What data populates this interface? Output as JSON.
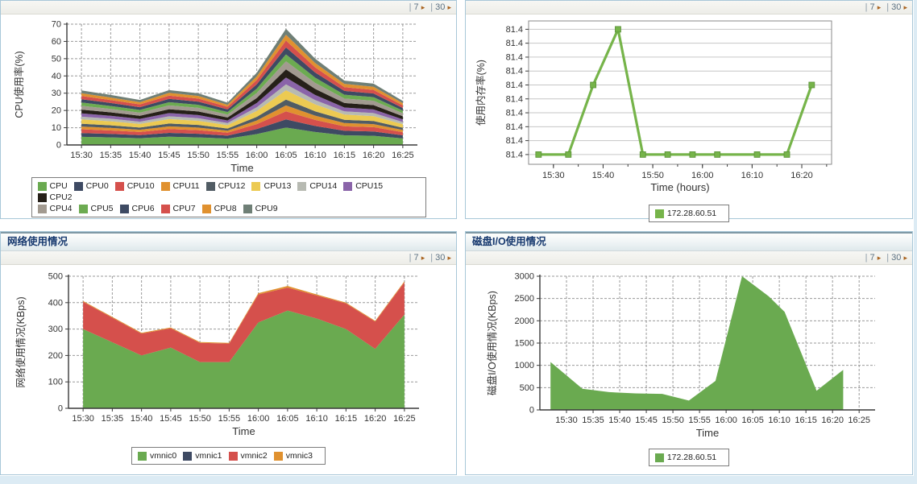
{
  "toolbar": {
    "sep": "|",
    "link7": "7",
    "link30": "30",
    "arrow": "▸"
  },
  "panels": {
    "cpu": {},
    "memory": {},
    "network": {
      "title": "网络使用情况"
    },
    "disk": {
      "title": "磁盘I/O使用情况"
    }
  },
  "colors": {
    "panel_border": "#a8c7d8",
    "page_strip": "#dcebf4",
    "title_text": "#16386e",
    "grid_dashed": "#999999",
    "grid_solid": "#c6c6c6",
    "axis": "#3a3a3a"
  },
  "chart_data": [
    {
      "id": "cpu",
      "type": "area-stacked",
      "axis": "axes",
      "grid": "dashed",
      "ylabel": "CPU使用率(%)",
      "xlabel": "Time",
      "ylim": [
        0,
        70
      ],
      "yticks": [
        0,
        10,
        20,
        30,
        40,
        50,
        60,
        70
      ],
      "ytick_labels": [
        "0",
        "10",
        "20",
        "30",
        "40",
        "50",
        "60",
        "70"
      ],
      "xdomain": [
        27.5,
        87.5
      ],
      "xtick_pos": [
        30,
        35,
        40,
        45,
        50,
        55,
        60,
        65,
        70,
        75,
        80,
        85
      ],
      "x_ticks": [
        "15:30",
        "15:35",
        "15:40",
        "15:45",
        "15:50",
        "15:55",
        "16:00",
        "16:05",
        "16:10",
        "16:15",
        "16:20",
        "16:25"
      ],
      "x": [
        30,
        35,
        40,
        45,
        50,
        55,
        60,
        65,
        70,
        75,
        80,
        85
      ],
      "legend_break": 9,
      "series": [
        {
          "name": "CPU",
          "color": "#6aaa50",
          "values": [
            4.7,
            4.4,
            3.9,
            4.8,
            4.4,
            3.7,
            6.3,
            10.1,
            7.5,
            5.6,
            5.3,
            3.8
          ]
        },
        {
          "name": "CPU0",
          "color": "#3e4a63",
          "values": [
            2.2,
            2.0,
            1.8,
            2.2,
            2.1,
            1.7,
            2.9,
            4.7,
            3.5,
            2.6,
            2.5,
            1.8
          ]
        },
        {
          "name": "CPU10",
          "color": "#d5504c",
          "values": [
            2.2,
            2.0,
            1.8,
            2.2,
            2.1,
            1.7,
            2.9,
            4.7,
            3.5,
            2.6,
            2.5,
            1.8
          ]
        },
        {
          "name": "CPU11",
          "color": "#e0912f",
          "values": [
            1.6,
            1.5,
            1.3,
            1.6,
            1.5,
            1.2,
            2.1,
            3.4,
            2.5,
            1.9,
            1.8,
            1.3
          ]
        },
        {
          "name": "CPU12",
          "color": "#515c64",
          "values": [
            1.6,
            1.5,
            1.3,
            1.6,
            1.5,
            1.2,
            2.1,
            3.4,
            2.5,
            1.9,
            1.8,
            1.3
          ]
        },
        {
          "name": "CPU13",
          "color": "#ecca52",
          "values": [
            2.5,
            2.3,
            2.1,
            2.6,
            2.4,
            2.0,
            3.4,
            5.4,
            4.0,
            3.0,
            2.8,
            2.0
          ]
        },
        {
          "name": "CPU14",
          "color": "#b7bab2",
          "values": [
            1.6,
            1.5,
            1.3,
            1.6,
            1.5,
            1.2,
            2.1,
            3.4,
            2.5,
            1.9,
            1.8,
            1.3
          ]
        },
        {
          "name": "CPU15",
          "color": "#8a64a9",
          "values": [
            1.9,
            1.7,
            1.6,
            1.9,
            1.8,
            1.5,
            2.5,
            4.0,
            3.0,
            2.2,
            2.1,
            1.5
          ]
        },
        {
          "name": "CPU2",
          "color": "#262019",
          "values": [
            2.2,
            2.0,
            1.8,
            2.2,
            2.1,
            1.7,
            2.9,
            4.7,
            3.5,
            2.6,
            2.5,
            1.8
          ]
        },
        {
          "name": "CPU4",
          "color": "#a29a90",
          "values": [
            2.2,
            2.0,
            1.8,
            2.2,
            2.1,
            1.7,
            2.9,
            4.7,
            3.5,
            2.6,
            2.5,
            1.8
          ]
        },
        {
          "name": "CPU5",
          "color": "#6cab51",
          "values": [
            1.9,
            1.7,
            1.6,
            1.9,
            1.8,
            1.5,
            2.5,
            4.0,
            3.0,
            2.2,
            2.1,
            1.5
          ]
        },
        {
          "name": "CPU6",
          "color": "#3e4a63",
          "values": [
            1.9,
            1.7,
            1.6,
            1.9,
            1.8,
            1.5,
            2.5,
            4.0,
            3.0,
            2.2,
            2.1,
            1.5
          ]
        },
        {
          "name": "CPU7",
          "color": "#d5504c",
          "values": [
            1.9,
            1.7,
            1.6,
            1.9,
            1.8,
            1.5,
            2.5,
            4.0,
            3.0,
            2.2,
            2.1,
            1.5
          ]
        },
        {
          "name": "CPU8",
          "color": "#e0912f",
          "values": [
            1.6,
            1.5,
            1.3,
            1.6,
            1.5,
            1.2,
            2.1,
            3.4,
            2.5,
            1.9,
            1.8,
            1.3
          ]
        },
        {
          "name": "CPU9",
          "color": "#6f7f76",
          "values": [
            1.6,
            1.5,
            1.3,
            1.6,
            1.5,
            1.2,
            2.1,
            3.4,
            2.5,
            1.9,
            1.8,
            1.3
          ]
        }
      ]
    },
    {
      "id": "memory",
      "type": "line",
      "axis": "box",
      "grid": "solid",
      "ylabel": "使用内存率(%)",
      "xlabel": "Time (hours)",
      "ylim": [
        81.3965,
        81.448
      ],
      "yticks": [
        81.4,
        81.405,
        81.41,
        81.415,
        81.42,
        81.425,
        81.43,
        81.435,
        81.44,
        81.445
      ],
      "ytick_labels": [
        "81.4",
        "81.4",
        "81.4",
        "81.4",
        "81.4",
        "81.4",
        "81.4",
        "81.4",
        "81.4",
        "81.4"
      ],
      "note": "every y-axis tick label displays 81.4",
      "xdomain": [
        25,
        86
      ],
      "xtick_pos": [
        30,
        40,
        50,
        60,
        70,
        80
      ],
      "x_ticks": [
        "15:30",
        "15:40",
        "15:50",
        "16:00",
        "16:10",
        "16:20"
      ],
      "xminor_pos": [
        30,
        35,
        40,
        45,
        50,
        55,
        60,
        65,
        70,
        75,
        80,
        85
      ],
      "x": [
        27,
        33,
        38,
        43,
        48,
        53,
        58,
        63,
        71,
        77,
        82
      ],
      "series": [
        {
          "name": "172.28.60.51",
          "color": "#76b44a",
          "values": [
            81.4,
            81.4,
            81.425,
            81.445,
            81.4,
            81.4,
            81.4,
            81.4,
            81.4,
            81.4,
            81.425
          ]
        }
      ]
    },
    {
      "id": "network",
      "type": "area-stacked",
      "axis": "axes",
      "grid": "dashed",
      "ylabel": "网络使用情况(KBps)",
      "xlabel": "Time",
      "ylim": [
        0,
        500
      ],
      "yticks": [
        0,
        100,
        200,
        300,
        400,
        500
      ],
      "ytick_labels": [
        "0",
        "100",
        "200",
        "300",
        "400",
        "500"
      ],
      "xdomain": [
        27.5,
        87.5
      ],
      "xtick_pos": [
        30,
        35,
        40,
        45,
        50,
        55,
        60,
        65,
        70,
        75,
        80,
        85
      ],
      "x_ticks": [
        "15:30",
        "15:35",
        "15:40",
        "15:45",
        "15:50",
        "15:55",
        "16:00",
        "16:05",
        "16:10",
        "16:15",
        "16:20",
        "16:25"
      ],
      "x": [
        30,
        35,
        40,
        45,
        50,
        55,
        60,
        65,
        70,
        75,
        80,
        85
      ],
      "series": [
        {
          "name": "vmnic0",
          "color": "#6aaa50",
          "values": [
            300,
            250,
            200,
            230,
            175,
            175,
            325,
            370,
            340,
            300,
            225,
            355
          ]
        },
        {
          "name": "vmnic1",
          "color": "#3e4a63",
          "values": [
            0,
            0,
            0,
            0,
            0,
            0,
            0,
            0,
            0,
            0,
            0,
            0
          ]
        },
        {
          "name": "vmnic2",
          "color": "#d5504c",
          "values": [
            103,
            93,
            83,
            73,
            73,
            70,
            106,
            87,
            87,
            97,
            103,
            122
          ]
        },
        {
          "name": "vmnic3",
          "color": "#e0912f",
          "values": [
            3,
            3,
            3,
            3,
            3,
            3,
            5,
            6,
            4,
            3,
            3,
            4
          ]
        }
      ]
    },
    {
      "id": "disk",
      "type": "area",
      "axis": "axes",
      "grid": "dashed",
      "ylabel": "磁盘I/O使用情况(KBps)",
      "xlabel": "Time",
      "ylim": [
        0,
        3000
      ],
      "yticks": [
        0,
        500,
        1000,
        1500,
        2000,
        2500,
        3000
      ],
      "ytick_labels": [
        "0",
        "500",
        "1000",
        "1500",
        "2000",
        "2500",
        "3000"
      ],
      "xdomain": [
        25,
        88
      ],
      "xtick_pos": [
        30,
        35,
        40,
        45,
        50,
        55,
        60,
        65,
        70,
        75,
        80,
        85
      ],
      "x_ticks": [
        "15:30",
        "15:35",
        "15:40",
        "15:45",
        "15:50",
        "15:55",
        "16:00",
        "16:05",
        "16:10",
        "16:15",
        "16:20",
        "16:25"
      ],
      "x": [
        27,
        33,
        38,
        43,
        48,
        53,
        58,
        63,
        68,
        71,
        77,
        82
      ],
      "series": [
        {
          "name": "172.28.60.51",
          "color": "#6aaa50",
          "values": [
            1075,
            475,
            400,
            370,
            360,
            210,
            650,
            3000,
            2550,
            2200,
            430,
            900
          ]
        }
      ]
    }
  ]
}
